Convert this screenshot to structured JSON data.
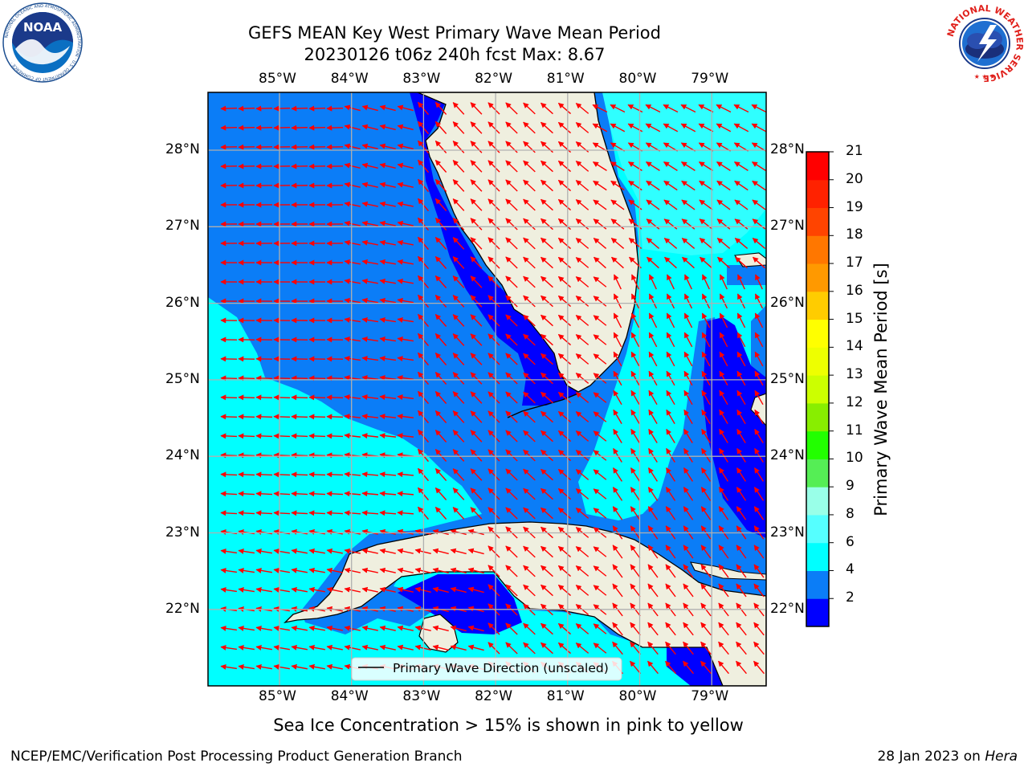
{
  "header": {
    "title_line1": "GEFS MEAN Key West Primary Wave Mean Period",
    "title_line2": "20230126 t06z 240h fcst   Max: 8.67"
  },
  "map": {
    "lon_ticks": [
      "85°W",
      "84°W",
      "83°W",
      "82°W",
      "81°W",
      "80°W",
      "79°W"
    ],
    "lat_ticks": [
      "28°N",
      "27°N",
      "26°N",
      "25°N",
      "24°N",
      "23°N",
      "22°N"
    ],
    "legend_label": "Primary Wave Direction (unscaled)",
    "arrow_color": "#ff0000",
    "land_color": "#efefdf"
  },
  "colorbar": {
    "label": "Primary Wave Mean Period [s]",
    "ticks": [
      "21",
      "20",
      "19",
      "18",
      "17",
      "16",
      "15",
      "14",
      "13",
      "12",
      "11",
      "10",
      "9",
      "8",
      "6",
      "4",
      "2"
    ],
    "colors": [
      "#0000ff",
      "#0b7df7",
      "#00ffff",
      "#55ffff",
      "#99ffe8",
      "#55ee55",
      "#22ff00",
      "#88ee00",
      "#ccff00",
      "#eeff00",
      "#ffff00",
      "#ffcc00",
      "#ff9900",
      "#ff7700",
      "#ff4400",
      "#ff2200",
      "#ff0000"
    ]
  },
  "caption": "Sea Ice Concentration > 15% is shown in pink to yellow",
  "footer": {
    "left": "NCEP/EMC/Verification Post Processing Product Generation Branch",
    "right_date": "28 Jan 2023 on ",
    "right_host": "Hera"
  },
  "logos": {
    "noaa": "NOAA",
    "noaa_ring": "NATIONAL OCEANIC AND ATMOSPHERIC ADMINISTRATION · U.S. DEPARTMENT OF COMMERCE ·",
    "nws_ring": "NATIONAL WEATHER SERVICE"
  }
}
